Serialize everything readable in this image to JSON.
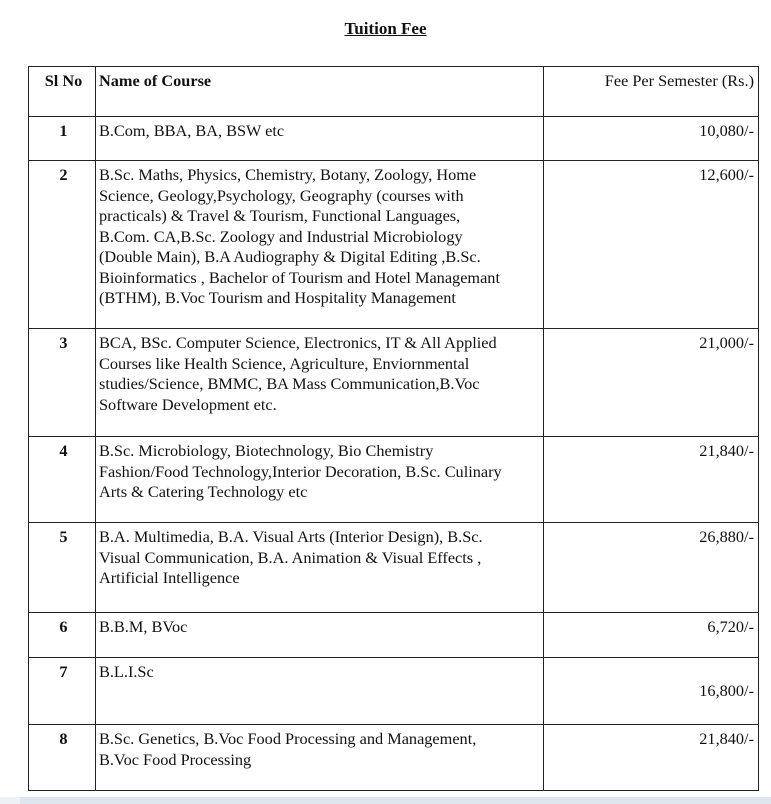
{
  "title": "Tuition Fee",
  "table": {
    "headers": {
      "sl": "Sl No",
      "name": "Name of Course",
      "fee": "Fee Per Semester (Rs.)"
    },
    "rows": [
      {
        "sl": "1",
        "lines": [
          "B.Com, BBA, BA, BSW etc"
        ],
        "fee": "10,080/-"
      },
      {
        "sl": "2",
        "lines": [
          "B.Sc. Maths, Physics, Chemistry, Botany, Zoology, Home",
          "Science, Geology,Psychology, Geography (courses with",
          "practicals) & Travel & Tourism, Functional Languages,",
          "B.Com. CA,B.Sc. Zoology and Industrial Microbiology",
          "(Double Main), B.A Audiography & Digital Editing ,B.Sc.",
          "Bioinformatics , Bachelor of Tourism and Hotel Managemant",
          "(BTHM), B.Voc Tourism and Hospitality Management"
        ],
        "fee": "12,600/-"
      },
      {
        "sl": "3",
        "lines": [
          "BCA, BSc. Computer Science, Electronics, IT & All Applied",
          "Courses like Health Science, Agriculture, Enviornmental",
          "studies/Science, BMMC, BA Mass Communication,B.Voc",
          "Software Development etc."
        ],
        "fee": "21,000/-"
      },
      {
        "sl": "4",
        "lines": [
          "B.Sc. Microbiology, Biotechnology, Bio Chemistry",
          "Fashion/Food Technology,Interior Decoration, B.Sc. Culinary",
          "Arts & Catering Technology etc"
        ],
        "fee": "21,840/-"
      },
      {
        "sl": "5",
        "lines": [
          "B.A. Multimedia, B.A. Visual Arts (Interior Design), B.Sc.",
          "Visual Communication, B.A. Animation & Visual Effects ,",
          "Artificial Intelligence"
        ],
        "fee": "26,880/-"
      },
      {
        "sl": "6",
        "lines": [
          "B.B.M, BVoc"
        ],
        "fee": "6,720/-"
      },
      {
        "sl": "7",
        "lines": [
          "B.L.I.Sc"
        ],
        "fee": "16,800/-"
      },
      {
        "sl": "8",
        "lines": [
          "B.Sc. Genetics, B.Voc Food Processing and Management,",
          "B.Voc Food Processing"
        ],
        "fee": "21,840/-"
      }
    ]
  }
}
